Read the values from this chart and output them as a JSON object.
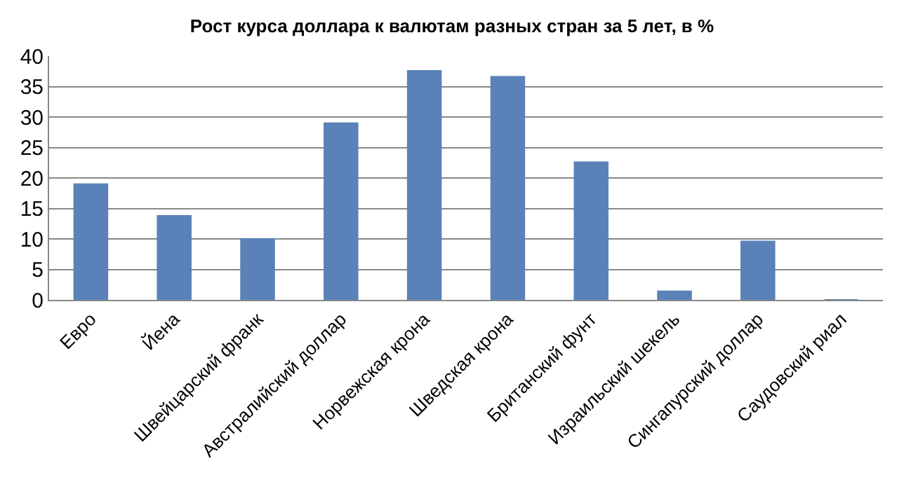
{
  "chart_data": {
    "type": "bar",
    "title": "Рост курса доллара к валютам разных стран за 5 лет, в %",
    "categories": [
      "Евро",
      "Йена",
      "Швейцарский франк",
      "Австралийский доллар",
      "Норвежская крона",
      "Шведская крона",
      "Британский фунт",
      "Израильский шекель",
      "Сингапурский доллар",
      "Саудовский риал"
    ],
    "values": [
      19,
      13.8,
      10,
      29,
      37.6,
      36.6,
      22.6,
      1.4,
      9.6,
      0
    ],
    "color": "#5a82b8",
    "ylim": [
      0,
      40
    ],
    "yticks": [
      0,
      5,
      10,
      15,
      20,
      25,
      30,
      35,
      40
    ],
    "grid": "y",
    "legend": false
  }
}
